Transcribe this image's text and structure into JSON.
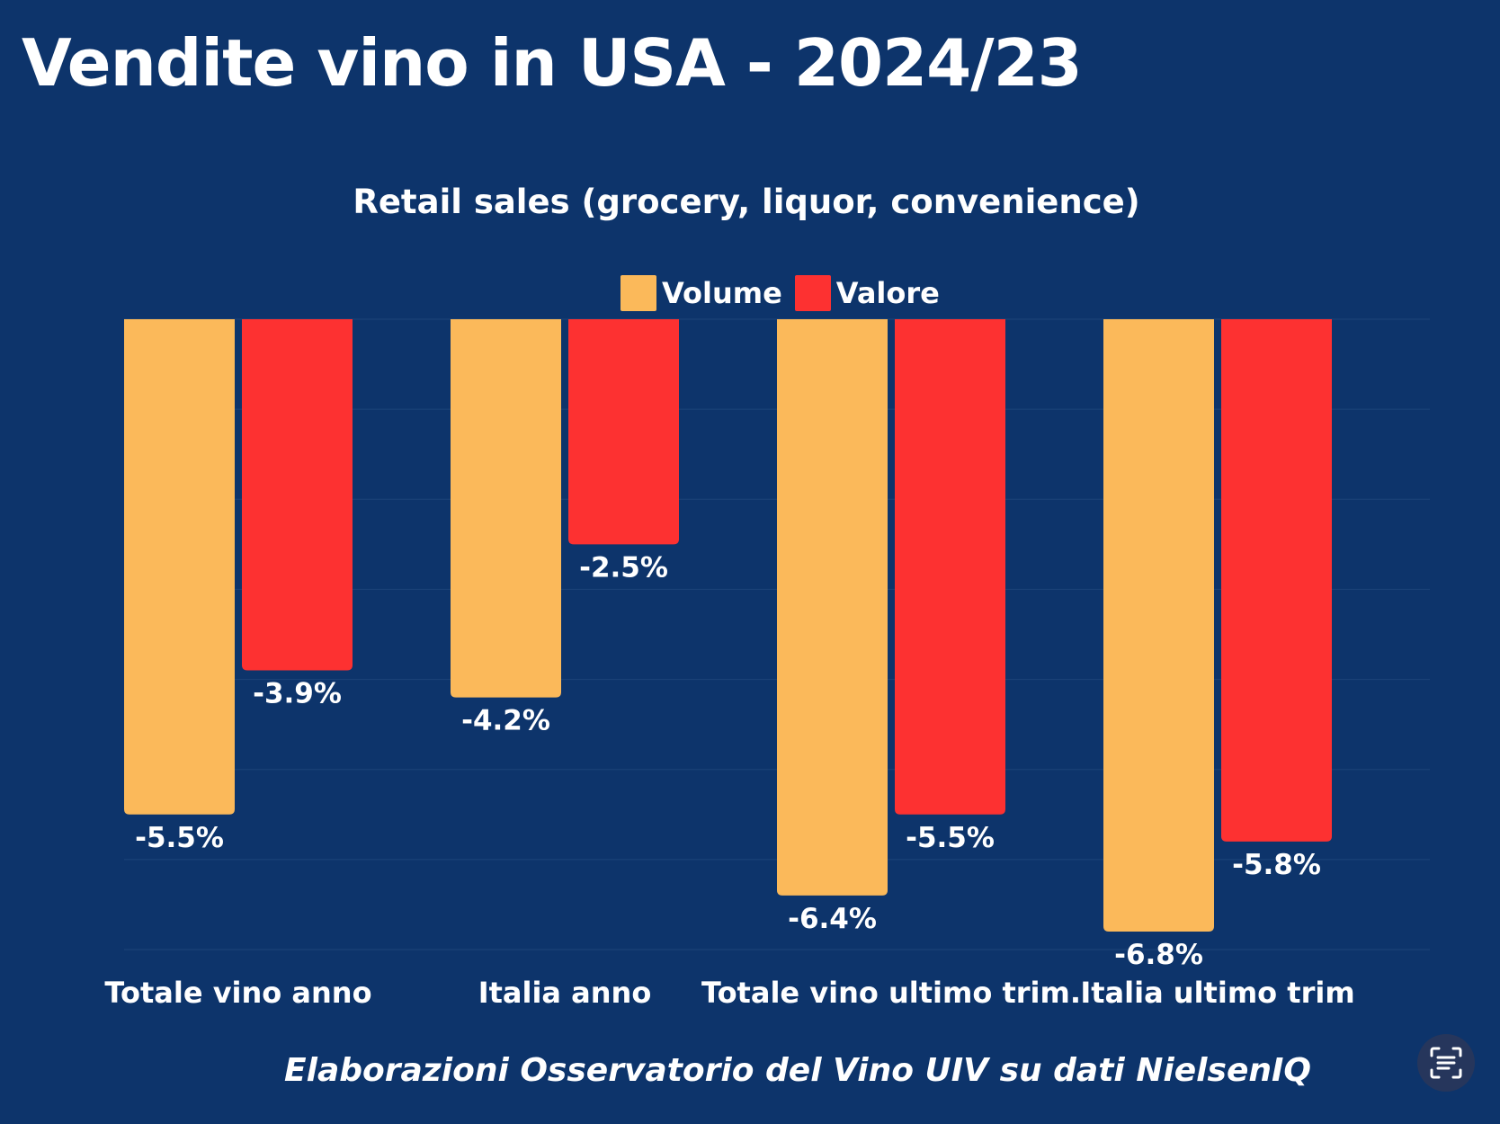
{
  "page": {
    "title": "Vendite vino in USA - 2024/23",
    "footer": "Elaborazioni Osservatorio del Vino UIV su dati NielsenIQ"
  },
  "colors": {
    "background": "#0d346b",
    "volume": "#fbb95a",
    "valore": "#fd3131",
    "gridline": "#1d4379"
  },
  "icons": {
    "scan": "scan-text-icon"
  },
  "chart_data": {
    "type": "bar",
    "title": "Retail sales (grocery, liquor, convenience)",
    "categories": [
      "Totale vino anno",
      "Italia anno",
      "Totale vino ultimo trim.",
      "Italia ultimo trim"
    ],
    "series": [
      {
        "name": "Volume",
        "values": [
          -5.5,
          -4.2,
          -6.4,
          -6.8
        ],
        "labels": [
          "-5.5%",
          "-4.2%",
          "-6.4%",
          "-6.8%"
        ]
      },
      {
        "name": "Valore",
        "values": [
          -3.9,
          -2.5,
          -5.5,
          -5.8
        ],
        "labels": [
          "-3.9%",
          "-2.5%",
          "-5.5%",
          "-5.8%"
        ]
      }
    ],
    "ylim": [
      -7,
      0
    ],
    "grid": true,
    "legend_position": "top-center",
    "xlabel": "",
    "ylabel": ""
  }
}
